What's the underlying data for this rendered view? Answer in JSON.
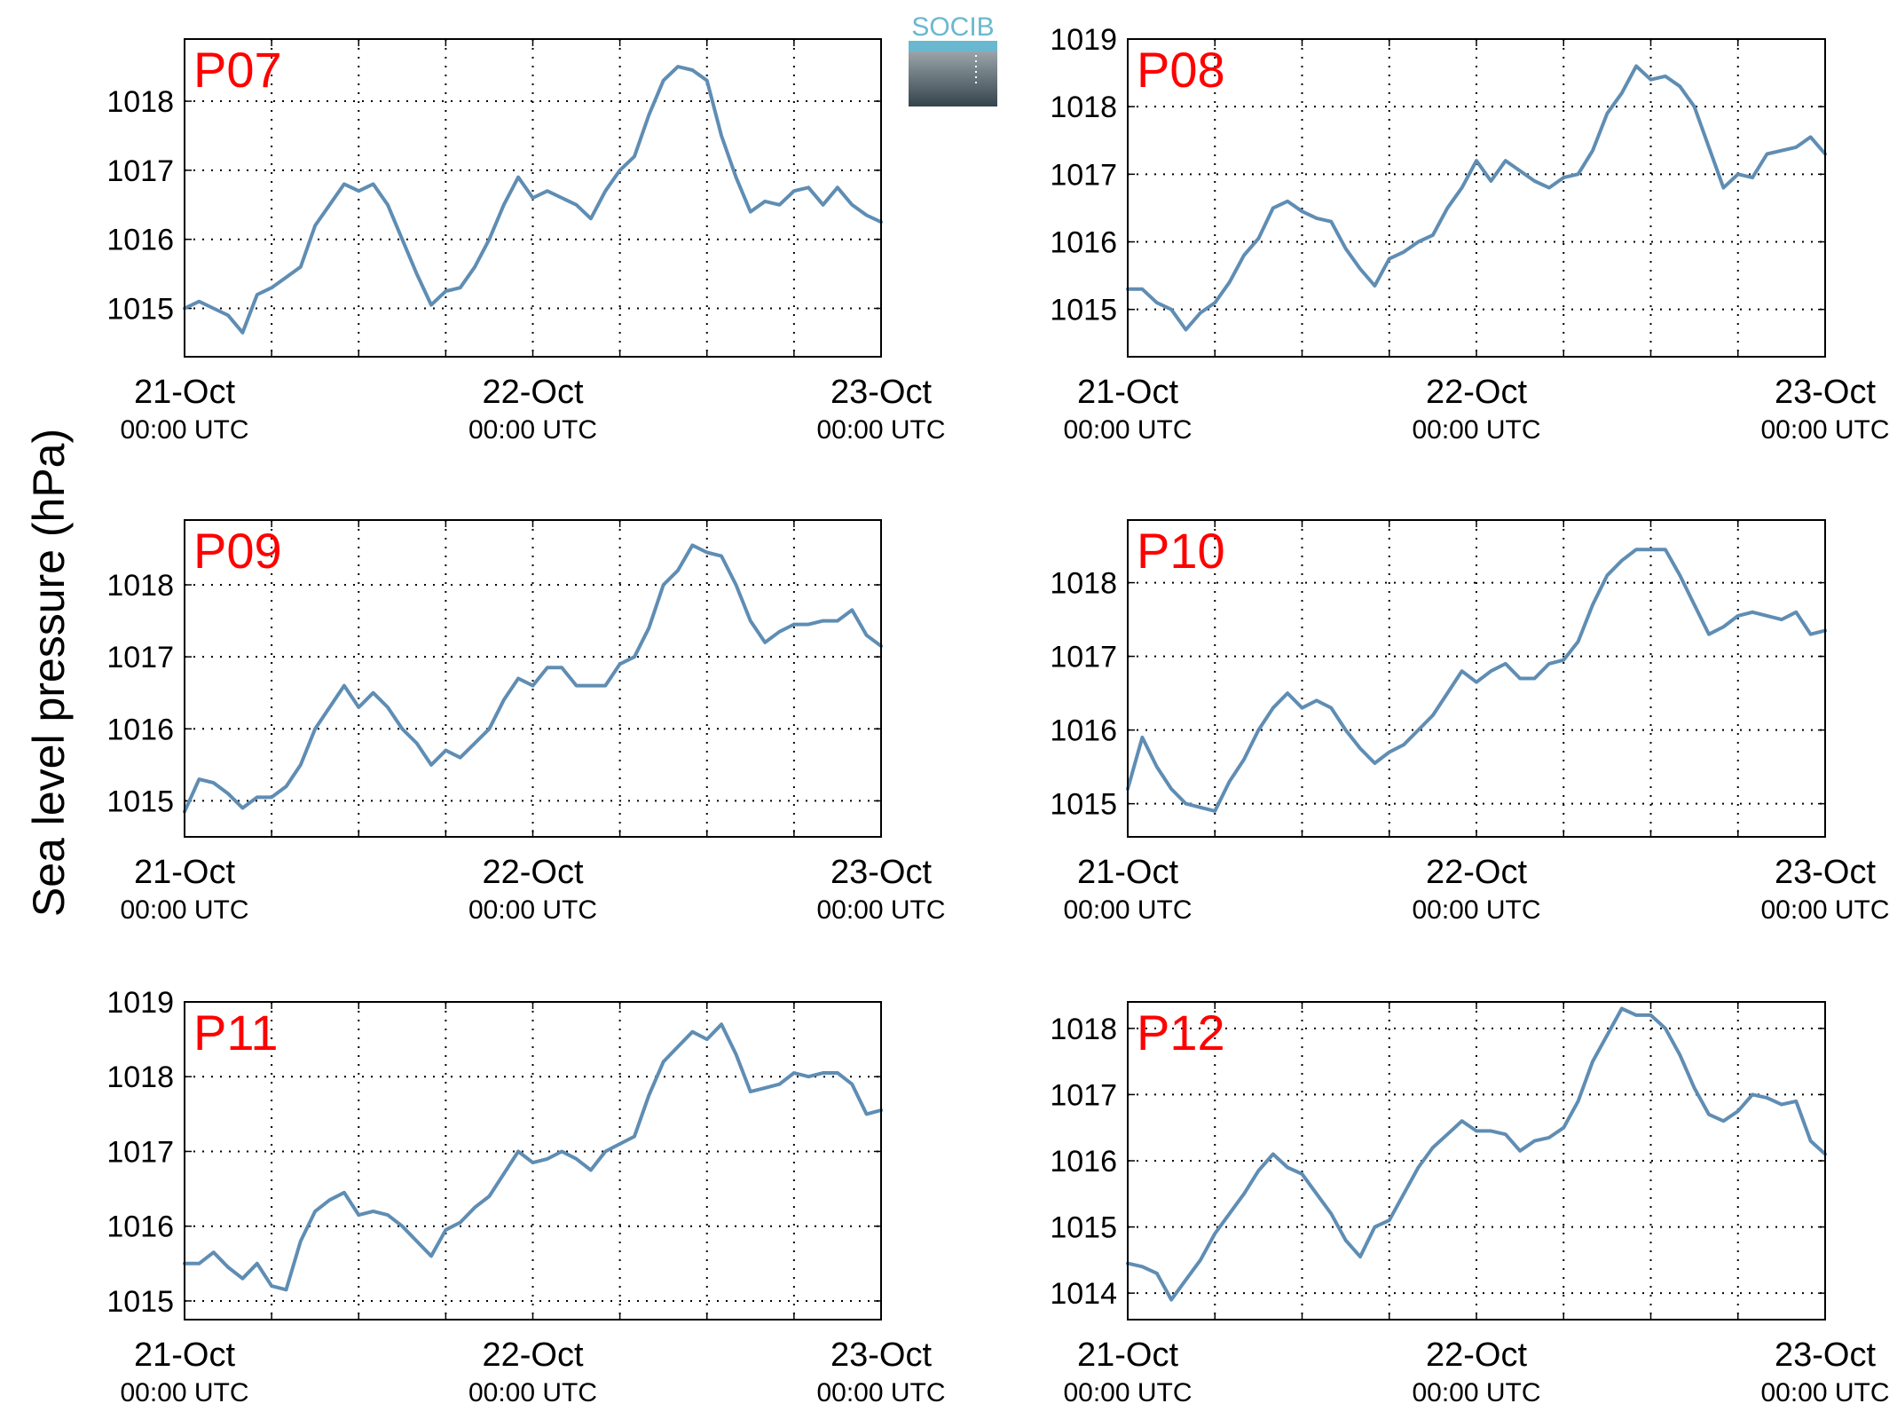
{
  "figure": {
    "ylabel": "Sea level pressure (hPa)",
    "logo_text": "SOCIB",
    "panel_label_color": "#ff0000",
    "line_color": "#5f8db3"
  },
  "chart_data": [
    {
      "type": "line",
      "title": "P07",
      "xlim": [
        0,
        48
      ],
      "ylim": [
        1014.3,
        1018.9
      ],
      "yticks": [
        1015,
        1016,
        1017,
        1018
      ],
      "xticks": [
        0,
        6,
        12,
        18,
        24,
        30,
        36,
        42,
        48
      ],
      "xticklabels": [
        {
          "x": 0,
          "date": "21-Oct",
          "time": "00:00 UTC"
        },
        {
          "x": 24,
          "date": "22-Oct",
          "time": "00:00 UTC"
        },
        {
          "x": 48,
          "date": "23-Oct",
          "time": "00:00 UTC"
        }
      ],
      "grid": true,
      "x": [
        0,
        1,
        2,
        3,
        4,
        5,
        6,
        7,
        8,
        9,
        10,
        11,
        12,
        13,
        14,
        15,
        16,
        17,
        18,
        19,
        20,
        21,
        22,
        23,
        24,
        25,
        26,
        27,
        28,
        29,
        30,
        31,
        32,
        33,
        34,
        35,
        36,
        37,
        38,
        39,
        40,
        41,
        42,
        43,
        44,
        45,
        46,
        47,
        48
      ],
      "y": [
        1015.0,
        1015.1,
        1015.0,
        1014.9,
        1014.65,
        1015.2,
        1015.3,
        1015.45,
        1015.6,
        1016.2,
        1016.5,
        1016.8,
        1016.7,
        1016.8,
        1016.5,
        1016.0,
        1015.5,
        1015.05,
        1015.25,
        1015.3,
        1015.6,
        1016.0,
        1016.5,
        1016.9,
        1016.6,
        1016.7,
        1016.6,
        1016.5,
        1016.3,
        1016.7,
        1017.0,
        1017.2,
        1017.8,
        1018.3,
        1018.5,
        1018.45,
        1018.3,
        1017.5,
        1016.9,
        1016.4,
        1016.55,
        1016.5,
        1016.7,
        1016.75,
        1016.5,
        1016.75,
        1016.5,
        1016.35,
        1016.25
      ]
    },
    {
      "type": "line",
      "title": "P08",
      "xlim": [
        0,
        48
      ],
      "ylim": [
        1014.3,
        1019.0
      ],
      "yticks": [
        1015,
        1016,
        1017,
        1018,
        1019
      ],
      "xticks": [
        0,
        6,
        12,
        18,
        24,
        30,
        36,
        42,
        48
      ],
      "xticklabels": [
        {
          "x": 0,
          "date": "21-Oct",
          "time": "00:00 UTC"
        },
        {
          "x": 24,
          "date": "22-Oct",
          "time": "00:00 UTC"
        },
        {
          "x": 48,
          "date": "23-Oct",
          "time": "00:00 UTC"
        }
      ],
      "grid": true,
      "x": [
        0,
        1,
        2,
        3,
        4,
        5,
        6,
        7,
        8,
        9,
        10,
        11,
        12,
        13,
        14,
        15,
        16,
        17,
        18,
        19,
        20,
        21,
        22,
        23,
        24,
        25,
        26,
        27,
        28,
        29,
        30,
        31,
        32,
        33,
        34,
        35,
        36,
        37,
        38,
        39,
        40,
        41,
        42,
        43,
        44,
        45,
        46,
        47,
        48
      ],
      "y": [
        1015.3,
        1015.3,
        1015.1,
        1015.0,
        1014.7,
        1014.95,
        1015.1,
        1015.4,
        1015.8,
        1016.05,
        1016.5,
        1016.6,
        1016.45,
        1016.35,
        1016.3,
        1015.9,
        1015.6,
        1015.35,
        1015.75,
        1015.85,
        1016.0,
        1016.1,
        1016.5,
        1016.8,
        1017.2,
        1016.9,
        1017.2,
        1017.05,
        1016.9,
        1016.8,
        1016.95,
        1017.0,
        1017.35,
        1017.9,
        1018.2,
        1018.6,
        1018.4,
        1018.45,
        1018.3,
        1018.0,
        1017.4,
        1016.8,
        1017.0,
        1016.95,
        1017.3,
        1017.35,
        1017.4,
        1017.55,
        1017.3
      ]
    },
    {
      "type": "line",
      "title": "P09",
      "xlim": [
        0,
        48
      ],
      "ylim": [
        1014.5,
        1018.9
      ],
      "yticks": [
        1015,
        1016,
        1017,
        1018
      ],
      "xticks": [
        0,
        6,
        12,
        18,
        24,
        30,
        36,
        42,
        48
      ],
      "xticklabels": [
        {
          "x": 0,
          "date": "21-Oct",
          "time": "00:00 UTC"
        },
        {
          "x": 24,
          "date": "22-Oct",
          "time": "00:00 UTC"
        },
        {
          "x": 48,
          "date": "23-Oct",
          "time": "00:00 UTC"
        }
      ],
      "grid": true,
      "x": [
        0,
        1,
        2,
        3,
        4,
        5,
        6,
        7,
        8,
        9,
        10,
        11,
        12,
        13,
        14,
        15,
        16,
        17,
        18,
        19,
        20,
        21,
        22,
        23,
        24,
        25,
        26,
        27,
        28,
        29,
        30,
        31,
        32,
        33,
        34,
        35,
        36,
        37,
        38,
        39,
        40,
        41,
        42,
        43,
        44,
        45,
        46,
        47,
        48
      ],
      "y": [
        1014.85,
        1015.3,
        1015.25,
        1015.1,
        1014.9,
        1015.05,
        1015.05,
        1015.2,
        1015.5,
        1016.0,
        1016.3,
        1016.6,
        1016.3,
        1016.5,
        1016.3,
        1016.0,
        1015.8,
        1015.5,
        1015.7,
        1015.6,
        1015.8,
        1016.0,
        1016.4,
        1016.7,
        1016.6,
        1016.85,
        1016.85,
        1016.6,
        1016.6,
        1016.6,
        1016.9,
        1017.0,
        1017.4,
        1018.0,
        1018.2,
        1018.55,
        1018.45,
        1018.4,
        1018.0,
        1017.5,
        1017.2,
        1017.35,
        1017.45,
        1017.45,
        1017.5,
        1017.5,
        1017.65,
        1017.3,
        1017.15
      ]
    },
    {
      "type": "line",
      "title": "P10",
      "xlim": [
        0,
        48
      ],
      "ylim": [
        1014.55,
        1018.85
      ],
      "yticks": [
        1015,
        1016,
        1017,
        1018
      ],
      "xticks": [
        0,
        6,
        12,
        18,
        24,
        30,
        36,
        42,
        48
      ],
      "xticklabels": [
        {
          "x": 0,
          "date": "21-Oct",
          "time": "00:00 UTC"
        },
        {
          "x": 24,
          "date": "22-Oct",
          "time": "00:00 UTC"
        },
        {
          "x": 48,
          "date": "23-Oct",
          "time": "00:00 UTC"
        }
      ],
      "grid": true,
      "x": [
        0,
        1,
        2,
        3,
        4,
        5,
        6,
        7,
        8,
        9,
        10,
        11,
        12,
        13,
        14,
        15,
        16,
        17,
        18,
        19,
        20,
        21,
        22,
        23,
        24,
        25,
        26,
        27,
        28,
        29,
        30,
        31,
        32,
        33,
        34,
        35,
        36,
        37,
        38,
        39,
        40,
        41,
        42,
        43,
        44,
        45,
        46,
        47,
        48
      ],
      "y": [
        1015.2,
        1015.9,
        1015.5,
        1015.2,
        1015.0,
        1014.95,
        1014.9,
        1015.3,
        1015.6,
        1016.0,
        1016.3,
        1016.5,
        1016.3,
        1016.4,
        1016.3,
        1016.0,
        1015.75,
        1015.55,
        1015.7,
        1015.8,
        1016.0,
        1016.2,
        1016.5,
        1016.8,
        1016.65,
        1016.8,
        1016.9,
        1016.7,
        1016.7,
        1016.9,
        1016.95,
        1017.2,
        1017.7,
        1018.1,
        1018.3,
        1018.45,
        1018.45,
        1018.45,
        1018.1,
        1017.7,
        1017.3,
        1017.4,
        1017.55,
        1017.6,
        1017.55,
        1017.5,
        1017.6,
        1017.3,
        1017.35
      ]
    },
    {
      "type": "line",
      "title": "P11",
      "xlim": [
        0,
        48
      ],
      "ylim": [
        1014.75,
        1019.0
      ],
      "yticks": [
        1015,
        1016,
        1017,
        1018,
        1019
      ],
      "xticks": [
        0,
        6,
        12,
        18,
        24,
        30,
        36,
        42,
        48
      ],
      "xticklabels": [
        {
          "x": 0,
          "date": "21-Oct",
          "time": "00:00 UTC"
        },
        {
          "x": 24,
          "date": "22-Oct",
          "time": "00:00 UTC"
        },
        {
          "x": 48,
          "date": "23-Oct",
          "time": "00:00 UTC"
        }
      ],
      "grid": true,
      "x": [
        0,
        1,
        2,
        3,
        4,
        5,
        6,
        7,
        8,
        9,
        10,
        11,
        12,
        13,
        14,
        15,
        16,
        17,
        18,
        19,
        20,
        21,
        22,
        23,
        24,
        25,
        26,
        27,
        28,
        29,
        30,
        31,
        32,
        33,
        34,
        35,
        36,
        37,
        38,
        39,
        40,
        41,
        42,
        43,
        44,
        45,
        46,
        47,
        48
      ],
      "y": [
        1015.5,
        1015.5,
        1015.65,
        1015.45,
        1015.3,
        1015.5,
        1015.2,
        1015.15,
        1015.8,
        1016.2,
        1016.35,
        1016.45,
        1016.15,
        1016.2,
        1016.15,
        1016.0,
        1015.8,
        1015.6,
        1015.95,
        1016.05,
        1016.25,
        1016.4,
        1016.7,
        1017.0,
        1016.85,
        1016.9,
        1017.0,
        1016.9,
        1016.75,
        1017.0,
        1017.1,
        1017.2,
        1017.75,
        1018.2,
        1018.4,
        1018.6,
        1018.5,
        1018.7,
        1018.3,
        1017.8,
        1017.85,
        1017.9,
        1018.05,
        1018.0,
        1018.05,
        1018.05,
        1017.9,
        1017.5,
        1017.55
      ]
    },
    {
      "type": "line",
      "title": "P12",
      "xlim": [
        0,
        48
      ],
      "ylim": [
        1013.6,
        1018.4
      ],
      "yticks": [
        1014,
        1015,
        1016,
        1017,
        1018
      ],
      "xticks": [
        0,
        6,
        12,
        18,
        24,
        30,
        36,
        42,
        48
      ],
      "xticklabels": [
        {
          "x": 0,
          "date": "21-Oct",
          "time": "00:00 UTC"
        },
        {
          "x": 24,
          "date": "22-Oct",
          "time": "00:00 UTC"
        },
        {
          "x": 48,
          "date": "23-Oct",
          "time": "00:00 UTC"
        }
      ],
      "grid": true,
      "x": [
        0,
        1,
        2,
        3,
        4,
        5,
        6,
        7,
        8,
        9,
        10,
        11,
        12,
        13,
        14,
        15,
        16,
        17,
        18,
        19,
        20,
        21,
        22,
        23,
        24,
        25,
        26,
        27,
        28,
        29,
        30,
        31,
        32,
        33,
        34,
        35,
        36,
        37,
        38,
        39,
        40,
        41,
        42,
        43,
        44,
        45,
        46,
        47,
        48
      ],
      "y": [
        1014.45,
        1014.4,
        1014.3,
        1013.9,
        1014.2,
        1014.5,
        1014.9,
        1015.2,
        1015.5,
        1015.85,
        1016.1,
        1015.9,
        1015.8,
        1015.5,
        1015.2,
        1014.8,
        1014.55,
        1015.0,
        1015.1,
        1015.5,
        1015.9,
        1016.2,
        1016.4,
        1016.6,
        1016.45,
        1016.45,
        1016.4,
        1016.15,
        1016.3,
        1016.35,
        1016.5,
        1016.9,
        1017.5,
        1017.9,
        1018.3,
        1018.2,
        1018.2,
        1018.0,
        1017.6,
        1017.1,
        1016.7,
        1016.6,
        1016.75,
        1017.0,
        1016.95,
        1016.85,
        1016.9,
        1016.3,
        1016.1
      ]
    }
  ]
}
